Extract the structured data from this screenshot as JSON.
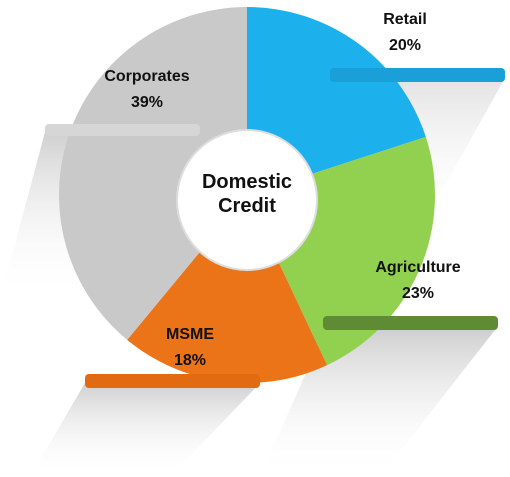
{
  "chart_data": {
    "type": "pie",
    "center_label": "Domestic Credit",
    "categories": [
      "Retail",
      "Agriculture",
      "MSME",
      "Corporates"
    ],
    "values": [
      20,
      23,
      18,
      39
    ],
    "value_labels": [
      "20%",
      "23%",
      "18%",
      "39%"
    ],
    "colors": [
      "#1cb0ec",
      "#92d050",
      "#ec7418",
      "#c9c9c9"
    ]
  }
}
